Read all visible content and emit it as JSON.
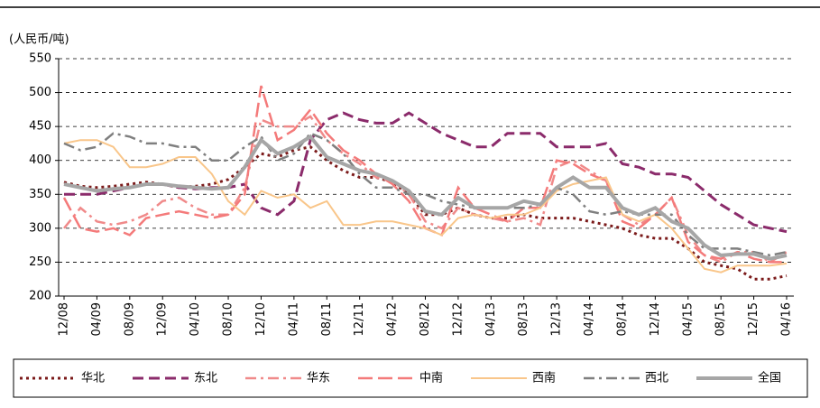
{
  "chart_data": {
    "type": "line",
    "y_label": "(人民币/吨)",
    "categories": [
      "12/08",
      null,
      "04/09",
      null,
      "08/09",
      null,
      "12/09",
      null,
      "04/10",
      null,
      "08/10",
      null,
      "12/10",
      null,
      "04/11",
      null,
      "08/11",
      null,
      "12/11",
      null,
      "04/12",
      null,
      "08/12",
      null,
      "12/12",
      null,
      "04/13",
      null,
      "08/13",
      null,
      "12/13",
      null,
      "04/14",
      null,
      "08/14",
      null,
      "12/14",
      null,
      "04/15",
      null,
      "08/15",
      null,
      "12/15",
      null,
      "04/16"
    ],
    "ylim": [
      200,
      550
    ],
    "yticks": [
      200,
      250,
      300,
      350,
      400,
      450,
      500,
      550
    ],
    "grid": true,
    "series": [
      {
        "name": "华北",
        "color": "#7b1a1a",
        "dash": "dotted",
        "values": [
          368,
          362,
          360,
          362,
          365,
          368,
          365,
          360,
          362,
          365,
          372,
          390,
          410,
          405,
          415,
          420,
          400,
          385,
          375,
          375,
          368,
          350,
          320,
          320,
          330,
          320,
          315,
          315,
          320,
          315,
          315,
          315,
          310,
          305,
          300,
          290,
          285,
          285,
          270,
          250,
          245,
          240,
          225,
          225,
          230
        ]
      },
      {
        "name": "东北",
        "color": "#8b2b6b",
        "dash": "dashed",
        "values": [
          350,
          350,
          350,
          355,
          360,
          365,
          365,
          360,
          358,
          360,
          360,
          365,
          330,
          320,
          340,
          430,
          460,
          470,
          460,
          455,
          455,
          470,
          455,
          440,
          430,
          420,
          420,
          440,
          440,
          440,
          420,
          420,
          420,
          425,
          395,
          390,
          380,
          380,
          375,
          355,
          335,
          320,
          305,
          300,
          295
        ]
      },
      {
        "name": "华东",
        "color": "#f08a8a",
        "dash": "dashdot",
        "values": [
          300,
          330,
          310,
          305,
          310,
          320,
          340,
          345,
          330,
          320,
          320,
          360,
          460,
          450,
          450,
          465,
          430,
          410,
          395,
          375,
          370,
          350,
          310,
          300,
          330,
          320,
          315,
          310,
          315,
          305,
          390,
          400,
          385,
          370,
          320,
          305,
          320,
          345,
          290,
          260,
          250,
          265,
          265,
          250,
          265
        ]
      },
      {
        "name": "中南",
        "color": "#f47a7a",
        "dash": "longdash",
        "values": [
          345,
          300,
          295,
          300,
          290,
          315,
          320,
          325,
          320,
          315,
          320,
          350,
          510,
          430,
          445,
          475,
          440,
          415,
          400,
          380,
          365,
          340,
          300,
          290,
          360,
          330,
          320,
          310,
          330,
          330,
          400,
          395,
          380,
          370,
          310,
          300,
          320,
          345,
          280,
          260,
          255,
          265,
          255,
          250,
          250
        ]
      },
      {
        "name": "西南",
        "color": "#f9c68a",
        "dash": "solid",
        "values": [
          425,
          430,
          430,
          420,
          390,
          390,
          395,
          405,
          405,
          380,
          340,
          320,
          355,
          345,
          350,
          330,
          340,
          305,
          305,
          310,
          310,
          305,
          300,
          290,
          315,
          320,
          315,
          320,
          320,
          330,
          355,
          365,
          370,
          375,
          320,
          310,
          320,
          300,
          270,
          240,
          235,
          245,
          245,
          245,
          248
        ]
      },
      {
        "name": "西北",
        "color": "#7f7f7f",
        "dash": "dashdot",
        "values": [
          425,
          415,
          420,
          440,
          435,
          425,
          425,
          420,
          420,
          400,
          400,
          420,
          435,
          400,
          410,
          440,
          430,
          410,
          380,
          360,
          360,
          350,
          350,
          340,
          335,
          330,
          330,
          330,
          330,
          335,
          360,
          350,
          325,
          320,
          325,
          320,
          320,
          320,
          290,
          270,
          270,
          270,
          265,
          260,
          265
        ]
      },
      {
        "name": "全国",
        "color": "#a6a6a6",
        "dash": "thick",
        "values": [
          365,
          360,
          355,
          358,
          360,
          365,
          365,
          362,
          360,
          358,
          360,
          390,
          430,
          410,
          420,
          435,
          405,
          395,
          385,
          380,
          370,
          355,
          325,
          320,
          345,
          330,
          330,
          330,
          340,
          335,
          360,
          375,
          360,
          360,
          330,
          320,
          330,
          310,
          300,
          275,
          260,
          262,
          262,
          255,
          260
        ]
      }
    ]
  }
}
